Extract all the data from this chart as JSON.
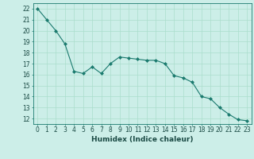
{
  "x": [
    0,
    1,
    2,
    3,
    4,
    5,
    6,
    7,
    8,
    9,
    10,
    11,
    12,
    13,
    14,
    15,
    16,
    17,
    18,
    19,
    20,
    21,
    22,
    23
  ],
  "y": [
    22,
    21,
    20,
    18.8,
    16.3,
    16.1,
    16.7,
    16.1,
    17.0,
    17.6,
    17.5,
    17.4,
    17.3,
    17.3,
    17.0,
    15.9,
    15.7,
    15.3,
    14.0,
    13.8,
    13.0,
    12.4,
    11.9,
    11.8
  ],
  "xlabel": "Humidex (Indice chaleur)",
  "ylim": [
    11.5,
    22.5
  ],
  "xlim": [
    -0.5,
    23.5
  ],
  "yticks": [
    12,
    13,
    14,
    15,
    16,
    17,
    18,
    19,
    20,
    21,
    22
  ],
  "xticks": [
    0,
    1,
    2,
    3,
    4,
    5,
    6,
    7,
    8,
    9,
    10,
    11,
    12,
    13,
    14,
    15,
    16,
    17,
    18,
    19,
    20,
    21,
    22,
    23
  ],
  "line_color": "#1a7a6e",
  "marker_color": "#1a7a6e",
  "bg_color": "#cceee8",
  "grid_color": "#aaddcc",
  "axis_label_fontsize": 6.5,
  "tick_fontsize": 5.5
}
